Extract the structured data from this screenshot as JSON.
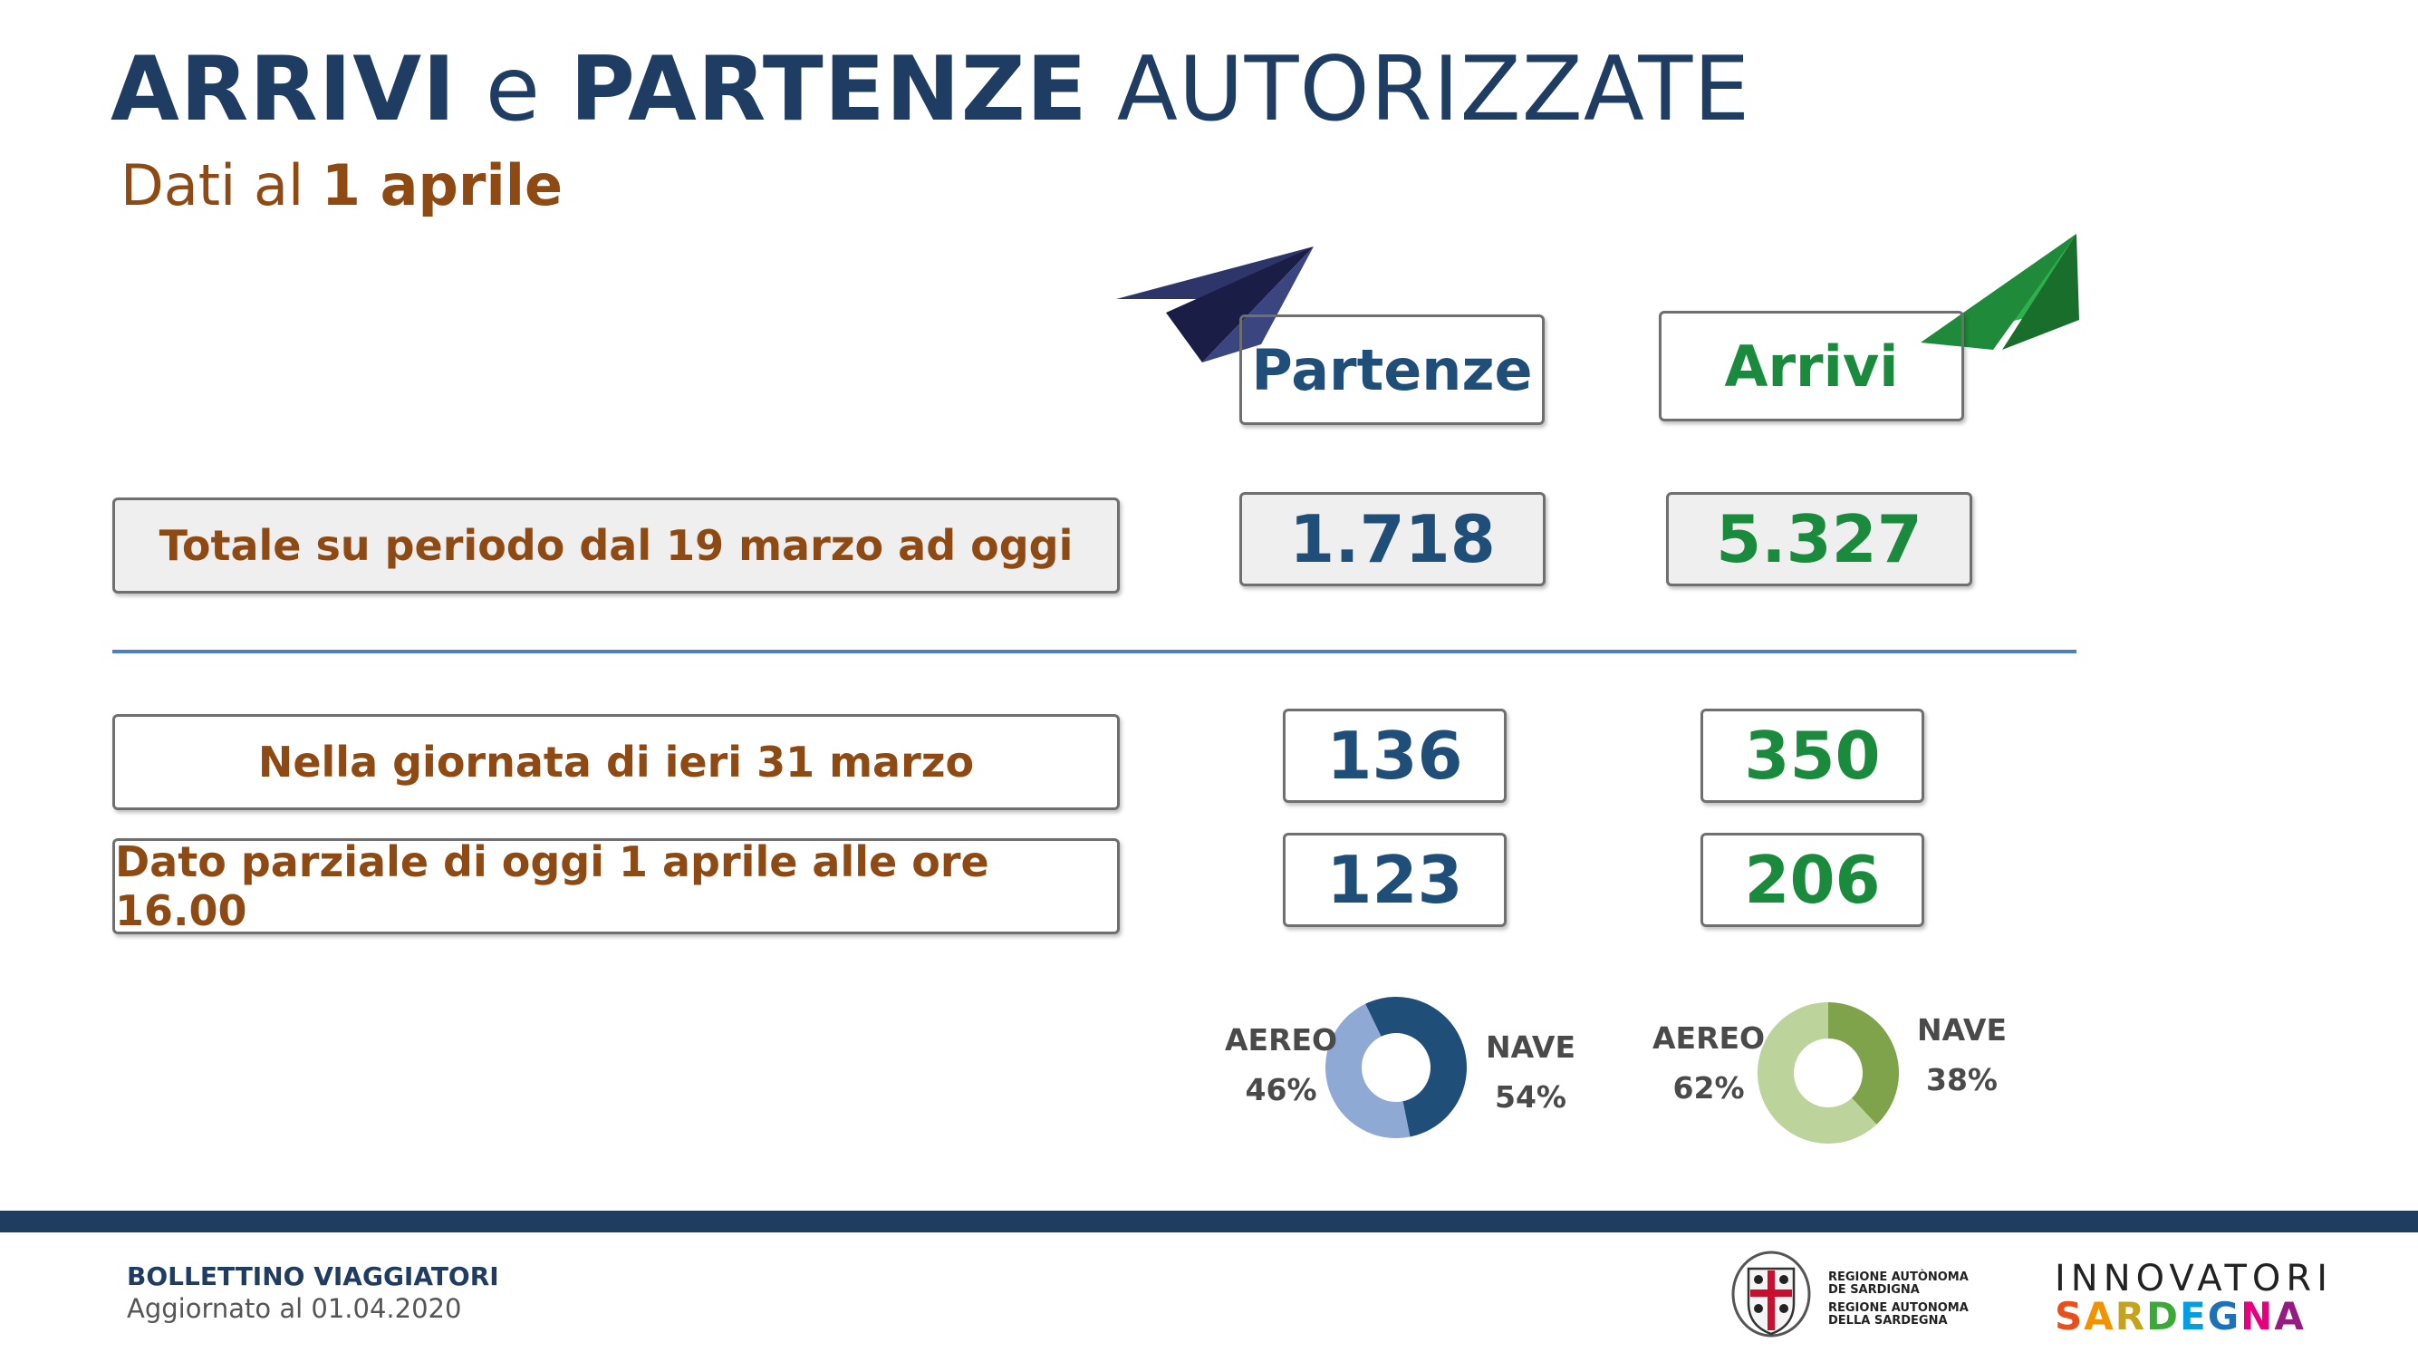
{
  "header": {
    "title_part1": "ARRIVI",
    "title_part2": "e",
    "title_part3": "PARTENZE",
    "title_part4": "AUTORIZZATE",
    "subtitle_prefix": "Dati al",
    "subtitle_date": "1 aprile"
  },
  "columns": {
    "partenze": "Partenze",
    "arrivi": "Arrivi"
  },
  "rows": [
    {
      "label": "Totale su periodo dal 19 marzo ad oggi",
      "partenze": "1.718",
      "arrivi": "5.327"
    },
    {
      "label": "Nella giornata di ieri 31 marzo",
      "partenze": "136",
      "arrivi": "350"
    },
    {
      "label": "Dato parziale di oggi 1 aprile alle ore 16.00",
      "partenze": "123",
      "arrivi": "206"
    }
  ],
  "chart_data": [
    {
      "type": "pie",
      "series_group": "Partenze",
      "categories": [
        "AEREO",
        "NAVE"
      ],
      "values": [
        46,
        54
      ],
      "labels": [
        "46%",
        "54%"
      ],
      "colors": [
        "#8eaad4",
        "#1f4e79"
      ]
    },
    {
      "type": "pie",
      "series_group": "Arrivi",
      "categories": [
        "AEREO",
        "NAVE"
      ],
      "values": [
        62,
        38
      ],
      "labels": [
        "62%",
        "38%"
      ],
      "colors": [
        "#bcd39b",
        "#7ea34a"
      ]
    }
  ],
  "footer": {
    "bulletin": "BOLLETTINO VIAGGIATORI",
    "updated": "Aggiornato al 01.04.2020",
    "region_line1": "REGIONE AUTÒNOMA",
    "region_line2": "DE SARDIGNA",
    "region_line3": "REGIONE AUTONOMA",
    "region_line4": "DELLA SARDEGNA",
    "brand_top": "INNOVATORI",
    "brand_bottom": "SARDEGNA"
  },
  "icons": [
    "paper-plane-blue-icon",
    "paper-plane-green-icon",
    "region-coat-of-arms-icon"
  ],
  "colors": {
    "primary": "#1f3d63",
    "accent_brown": "#8e4a12",
    "green": "#1a8a3c",
    "separator": "#4a7fc1"
  }
}
